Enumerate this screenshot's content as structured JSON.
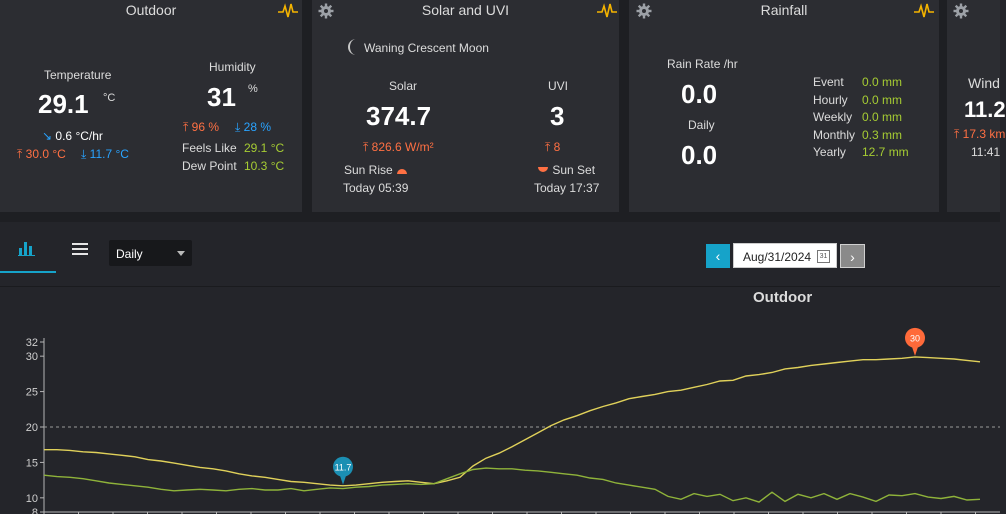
{
  "outdoor": {
    "title": "Outdoor",
    "temperature_label": "Temperature",
    "temperature": "29.1",
    "temperature_unit": "°C",
    "rate": "0.6",
    "rate_unit": "°C/hr",
    "temp_max": "30.0 °C",
    "temp_min": "11.7 °C",
    "humidity_label": "Humidity",
    "humidity": "31",
    "humidity_unit": "%",
    "hum_max": "96 %",
    "hum_min": "28 %",
    "feels_like_label": "Feels Like",
    "feels_like": "29.1 °C",
    "dew_point_label": "Dew Point",
    "dew_point": "10.3 °C"
  },
  "solar": {
    "title": "Solar and UVI",
    "moon_phase": "Waning Crescent Moon",
    "solar_label": "Solar",
    "solar": "374.7",
    "solar_max": "826.6 W/m²",
    "uvi_label": "UVI",
    "uvi": "3",
    "uvi_max": "8",
    "sunrise_label": "Sun Rise",
    "sunrise": "Today 05:39",
    "sunset_label": "Sun Set",
    "sunset": "Today 17:37"
  },
  "rainfall": {
    "title": "Rainfall",
    "rate_label": "Rain Rate /hr",
    "rate": "0.0",
    "daily_label": "Daily",
    "daily": "0.0",
    "rows": [
      {
        "label": "Event",
        "value": "0.0 mm"
      },
      {
        "label": "Hourly",
        "value": "0.0 mm"
      },
      {
        "label": "Weekly",
        "value": "0.0 mm"
      },
      {
        "label": "Monthly",
        "value": "0.3 mm"
      },
      {
        "label": "Yearly",
        "value": "12.7 mm"
      }
    ]
  },
  "wind": {
    "label": "Wind",
    "value": "11.2",
    "max": "17.3 km",
    "time": "11:41"
  },
  "toolbar": {
    "period": "Daily",
    "date": "Aug/31/2024",
    "prev": "‹",
    "next": "›",
    "calendar_day": "31"
  },
  "chart_data": {
    "type": "line",
    "title": "Outdoor",
    "ylim": [
      8,
      32
    ],
    "yticks": [
      8,
      10,
      15,
      20,
      25,
      30,
      32
    ],
    "dashed_reference": 20,
    "series": [
      {
        "color": "#e0d15a",
        "values": [
          16.8,
          16.8,
          16.7,
          16.5,
          16.4,
          16.2,
          16.0,
          15.8,
          15.4,
          15.2,
          14.9,
          14.6,
          14.3,
          14.1,
          13.8,
          13.4,
          13.1,
          12.9,
          12.6,
          12.3,
          12.2,
          12.0,
          11.8,
          11.7,
          11.8,
          12.0,
          12.2,
          12.3,
          12.4,
          12.2,
          12.0,
          12.4,
          12.9,
          14.5,
          15.6,
          16.3,
          17.2,
          18.2,
          19.2,
          20.2,
          21.0,
          21.6,
          22.3,
          22.9,
          23.4,
          24.0,
          24.3,
          24.6,
          25.0,
          25.2,
          25.6,
          26.0,
          26.5,
          26.6,
          27.2,
          27.4,
          27.7,
          28.2,
          28.4,
          28.7,
          28.9,
          29.1,
          29.3,
          29.5,
          29.5,
          29.6,
          29.7,
          29.9,
          29.8,
          29.7,
          29.6,
          29.4,
          29.2
        ]
      },
      {
        "color": "#8fb33a",
        "values": [
          13.2,
          13.0,
          12.9,
          12.7,
          12.4,
          12.1,
          11.9,
          11.7,
          11.5,
          11.2,
          11.0,
          11.1,
          11.2,
          11.1,
          11.0,
          11.2,
          11.3,
          11.1,
          11.1,
          11.3,
          11.0,
          11.2,
          11.4,
          11.3,
          11.5,
          11.6,
          11.8,
          11.9,
          12.0,
          11.9,
          12.0,
          12.7,
          13.4,
          14.0,
          14.2,
          14.1,
          14.1,
          13.9,
          13.8,
          13.6,
          13.4,
          13.2,
          12.8,
          12.6,
          12.1,
          11.8,
          11.5,
          11.2,
          10.2,
          9.8,
          10.6,
          10.2,
          10.5,
          9.6,
          10.0,
          9.4,
          10.8,
          9.5,
          10.5,
          10.0,
          10.6,
          9.8,
          10.6,
          10.1,
          9.5,
          10.4,
          10.3,
          10.6,
          10.1,
          9.9,
          10.2,
          9.7,
          9.8
        ]
      }
    ],
    "annotations": [
      {
        "label": "11.7",
        "series": 0,
        "index": 23,
        "color": "#1b8fb3"
      },
      {
        "label": "30",
        "series": 0,
        "index": 67,
        "color": "#ff6a3a"
      }
    ],
    "icons": {
      "gear": "gear-icon",
      "pulse": "pulse-icon",
      "moon": "moon-icon",
      "chart": "bar-chart-icon",
      "menu": "menu-icon"
    }
  }
}
